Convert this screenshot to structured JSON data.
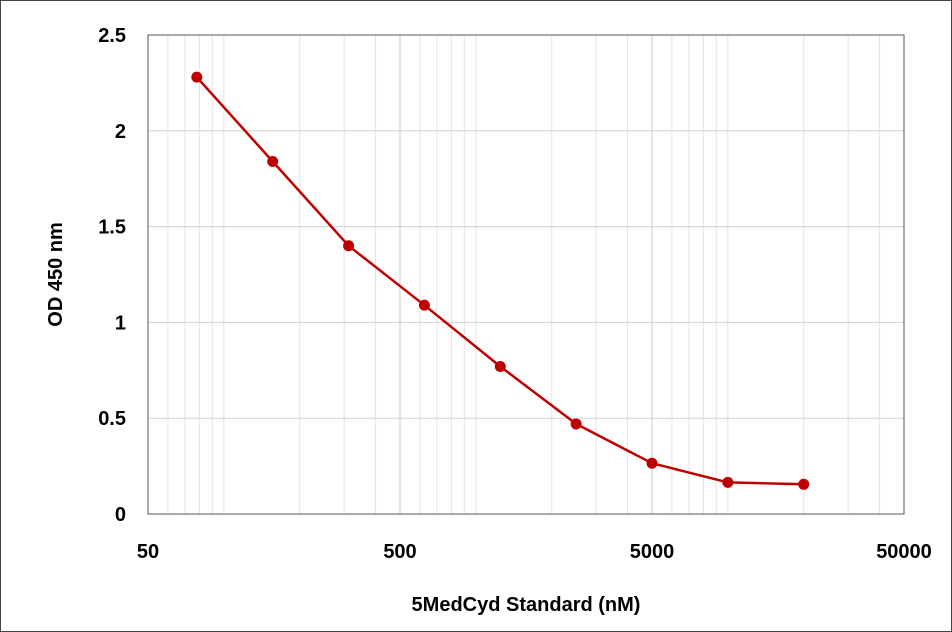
{
  "chart_data": {
    "type": "line",
    "title": "",
    "xlabel": "5MedCyd Standard (nM)",
    "ylabel": "OD 450 nm",
    "x_scale": "log",
    "xlim": [
      50,
      50000
    ],
    "ylim": [
      0,
      2.5
    ],
    "x_ticks": [
      "50",
      "500",
      "5000",
      "50000"
    ],
    "y_ticks": [
      "0",
      "0.5",
      "1",
      "1.5",
      "2",
      "2.5"
    ],
    "grid": true,
    "legend": "none",
    "series": [
      {
        "color": "#c00000",
        "x": [
          78.1,
          156.25,
          312.5,
          625,
          1250,
          2500,
          5000,
          10000,
          20000
        ],
        "y": [
          2.28,
          1.84,
          1.4,
          1.09,
          0.77,
          0.47,
          0.265,
          0.165,
          0.155
        ]
      }
    ]
  }
}
